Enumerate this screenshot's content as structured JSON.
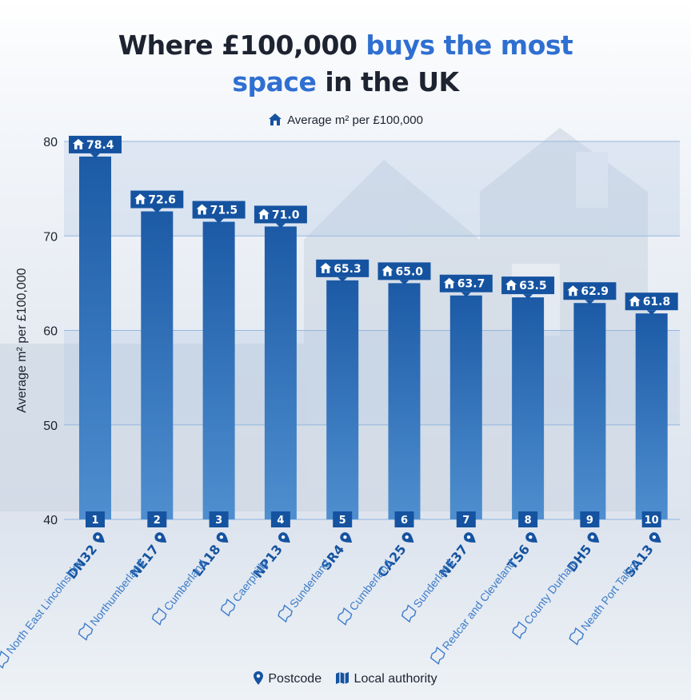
{
  "title": {
    "part1": "Where £100,000 ",
    "part2": "buys the most",
    "part3": "space",
    "part4": " in the UK"
  },
  "legend": {
    "series_label": "Average m² per £100,000",
    "postcode_label": "Postcode",
    "authority_label": "Local authority"
  },
  "colors": {
    "bar_top": "#1c5aa6",
    "bar_bottom": "#4f8fcf",
    "label_bg": "#1553a0",
    "postcode_text": "#1553a0",
    "authority_text": "#3d7cc9",
    "title_accent": "#2f6fd1"
  },
  "chart_data": {
    "type": "bar",
    "title": "Where £100,000 buys the most space in the UK",
    "ylabel": "Average m² per £100,000",
    "xlabel": "",
    "ylim": [
      40,
      80
    ],
    "yticks": [
      40,
      50,
      60,
      70,
      80
    ],
    "grid": true,
    "legend": "top-center",
    "series_name": "Average m² per £100,000",
    "categories": [
      {
        "rank": "1",
        "postcode": "DN32",
        "authority": "North East Lincolnshire",
        "value": 78.4,
        "label": "78.4"
      },
      {
        "rank": "2",
        "postcode": "NE17",
        "authority": "Northumberland",
        "value": 72.6,
        "label": "72.6"
      },
      {
        "rank": "3",
        "postcode": "LA18",
        "authority": "Cumberland",
        "value": 71.5,
        "label": "71.5"
      },
      {
        "rank": "4",
        "postcode": "NP13",
        "authority": "Caerphilly",
        "value": 71.0,
        "label": "71.0"
      },
      {
        "rank": "5",
        "postcode": "SR4",
        "authority": "Sunderland",
        "value": 65.3,
        "label": "65.3"
      },
      {
        "rank": "6",
        "postcode": "CA25",
        "authority": "Cumberland",
        "value": 65.0,
        "label": "65.0"
      },
      {
        "rank": "7",
        "postcode": "NE37",
        "authority": "Sunderland",
        "value": 63.7,
        "label": "63.7"
      },
      {
        "rank": "8",
        "postcode": "TS6",
        "authority": "Redcar and Cleveland",
        "value": 63.5,
        "label": "63.5"
      },
      {
        "rank": "9",
        "postcode": "DH5",
        "authority": "County Durham",
        "value": 62.9,
        "label": "62.9"
      },
      {
        "rank": "10",
        "postcode": "SA13",
        "authority": "Neath Port Talbot",
        "value": 61.8,
        "label": "61.8"
      }
    ]
  }
}
